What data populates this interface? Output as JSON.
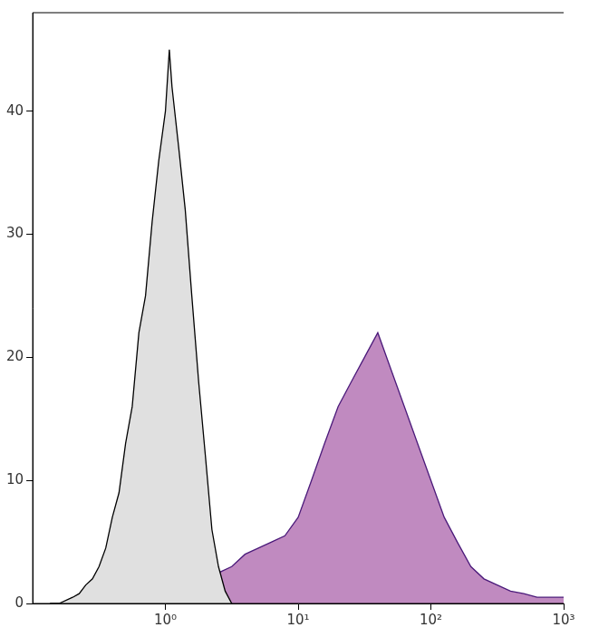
{
  "chart_data": {
    "type": "area",
    "log": "x",
    "grid": false,
    "xlim": [
      0.1,
      1000
    ],
    "ylim": [
      0,
      48
    ],
    "xticks": [
      {
        "value": 1,
        "label": "10⁰"
      },
      {
        "value": 10,
        "label": "10¹"
      },
      {
        "value": 100,
        "label": "10²"
      },
      {
        "value": 1000,
        "label": "10³"
      }
    ],
    "yticks": [
      0,
      10,
      20,
      30,
      40
    ],
    "series": [
      {
        "color": "#e0e0e0",
        "x": [
          0.135,
          0.158,
          0.2,
          0.224,
          0.251,
          0.282,
          0.316,
          0.355,
          0.398,
          0.447,
          0.501,
          0.562,
          0.631,
          0.708,
          0.794,
          0.891,
          1,
          1.07,
          1.12,
          1.26,
          1.41,
          1.58,
          1.78,
          2.0,
          2.24,
          2.51,
          2.82,
          3.16
        ],
        "values": [
          0,
          0,
          0.5,
          0.8,
          1.5,
          2,
          3,
          4.5,
          7,
          9,
          13,
          16,
          22,
          25,
          31,
          36,
          40,
          45,
          42,
          37,
          32,
          25,
          18,
          12,
          6,
          3,
          1,
          0
        ]
      },
      {
        "color": "#c08ac0",
        "x": [
          0.398,
          0.631,
          1,
          1.58,
          2.0,
          2.51,
          3.16,
          3.98,
          5.01,
          6.31,
          7.94,
          10,
          12.6,
          15.8,
          20,
          25.1,
          31.6,
          39.8,
          50.1,
          63.1,
          79.4,
          100,
          126,
          158,
          200,
          251,
          316,
          398,
          501,
          631,
          794,
          1000
        ],
        "values": [
          0.3,
          0.5,
          0.8,
          1.2,
          1.5,
          2.5,
          3,
          4,
          4.5,
          5,
          5.5,
          7,
          10,
          13,
          16,
          18,
          20,
          22,
          19,
          16,
          13,
          10,
          7,
          5,
          3,
          2,
          1.5,
          1,
          0.8,
          0.5,
          0.5,
          0.5
        ]
      }
    ]
  }
}
